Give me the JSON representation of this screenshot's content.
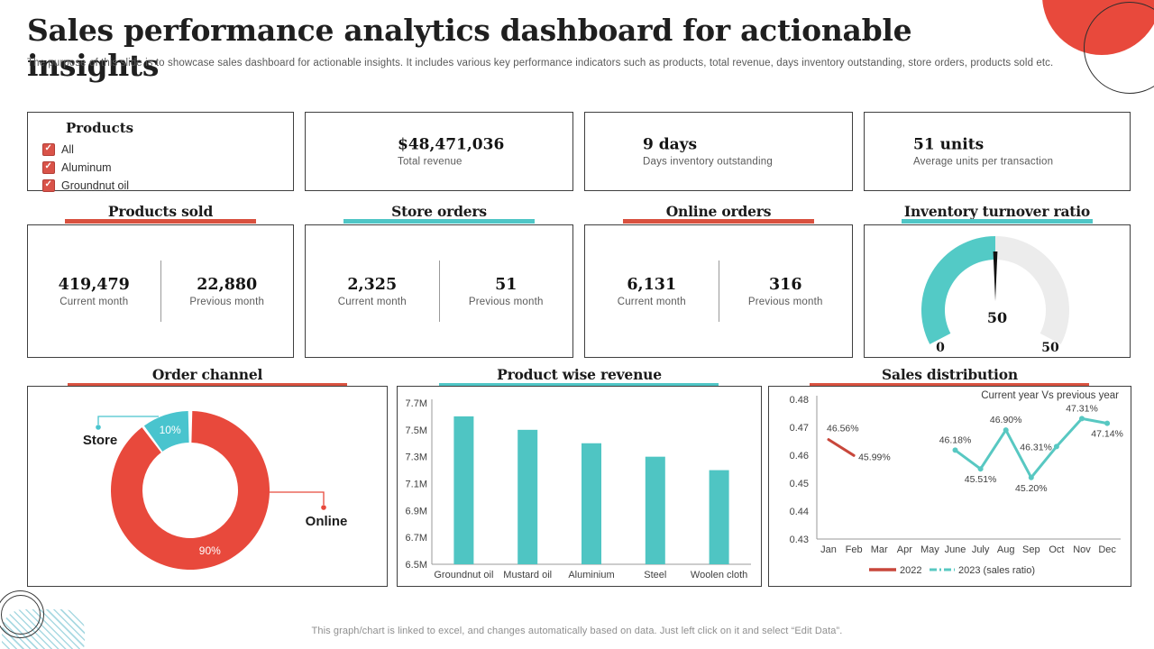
{
  "title": "Sales performance analytics dashboard for actionable insights",
  "subtitle": "The purpose of this slide is to showcase sales dashboard for actionable insights. It includes various key performance indicators such as products, total revenue, days inventory outstanding, store orders, products sold etc.",
  "footer": "This graph/chart is linked to excel, and changes automatically based on data. Just left click on it and select “Edit Data”.",
  "colors": {
    "accent_red": "#D9513F",
    "accent_teal": "#4FC6C6",
    "donut_red": "#E8493C",
    "donut_teal": "#49C4CE",
    "bar_teal": "#4FC5C3",
    "line_red": "#C8473B",
    "line_teal": "#58C8C2",
    "gauge_filled": "#53CAC6",
    "gauge_empty": "#ECECEC"
  },
  "filters": {
    "title": "Products",
    "options": [
      {
        "label": "All",
        "checked": true
      },
      {
        "label": "Aluminum",
        "checked": true
      },
      {
        "label": "Groundnut oil",
        "checked": true
      }
    ]
  },
  "kpis": [
    {
      "value": "$48,471,036",
      "label": "Total revenue"
    },
    {
      "value": "9 days",
      "label": "Days inventory outstanding"
    },
    {
      "value": "51 units",
      "label": "Average units per transaction"
    }
  ],
  "stat_cards": [
    {
      "title": "Products sold",
      "accent": "red",
      "current_value": "419,479",
      "current_label": "Current month",
      "previous_value": "22,880",
      "previous_label": "Previous month"
    },
    {
      "title": "Store orders",
      "accent": "teal",
      "current_value": "2,325",
      "current_label": "Current month",
      "previous_value": "51",
      "previous_label": "Previous month"
    },
    {
      "title": "Online orders",
      "accent": "red",
      "current_value": "6,131",
      "current_label": "Current month",
      "previous_value": "316",
      "previous_label": "Previous month"
    }
  ],
  "chart_data": [
    {
      "id": "inventory-gauge",
      "type": "gauge",
      "title": "Inventory turnover ratio",
      "value": 50,
      "value_label": "50",
      "min": 0,
      "max": 50,
      "min_label": "0",
      "max_label": "50",
      "colors": {
        "filled": "#53CAC6",
        "empty": "#ECECEC",
        "needle": "#111111"
      }
    },
    {
      "id": "order-channel",
      "type": "pie",
      "donut": true,
      "title": "Order channel",
      "slices": [
        {
          "label": "Online",
          "value": 90,
          "data_label": "90%",
          "color": "#E8493C"
        },
        {
          "label": "Store",
          "value": 10,
          "data_label": "10%",
          "color": "#49C4CE"
        }
      ]
    },
    {
      "id": "product-revenue",
      "type": "bar",
      "title": "Product wise revenue",
      "categories": [
        "Groundnut oil",
        "Mustard oil",
        "Aluminium",
        "Steel",
        "Woolen cloth"
      ],
      "values": [
        7.6,
        7.5,
        7.4,
        7.3,
        7.2
      ],
      "value_unit": "M",
      "ylim": [
        6.5,
        7.7
      ],
      "ytick_step": 0.2,
      "ytick_labels": [
        "6.5M",
        "6.7M",
        "6.9M",
        "7.1M",
        "7.3M",
        "7.5M",
        "7.7M"
      ],
      "bar_color": "#4FC5C3"
    },
    {
      "id": "sales-distribution",
      "type": "line",
      "title": "Sales distribution",
      "annotation": "Current year Vs previous year",
      "x_categories": [
        "Jan",
        "Feb",
        "Mar",
        "Apr",
        "May",
        "June",
        "July",
        "Aug",
        "Sep",
        "Oct",
        "Nov",
        "Dec"
      ],
      "ylim": [
        0.43,
        0.48
      ],
      "ytick_step": 0.01,
      "ytick_labels": [
        "0.43",
        "0.44",
        "0.45",
        "0.46",
        "0.47",
        "0.48"
      ],
      "legend": [
        {
          "name": "2022",
          "color": "#C8473B",
          "style": "solid"
        },
        {
          "name": "2023 (sales ratio)",
          "color": "#58C8C2",
          "style": "dash-dot"
        }
      ],
      "series": [
        {
          "name": "2022",
          "color": "#C8473B",
          "markers": false,
          "points": [
            {
              "x": "Jan",
              "y": 0.4656,
              "label": "46.56%",
              "label_pos": "above-left"
            },
            {
              "x": "Feb",
              "y": 0.4599,
              "label": "45.99%",
              "label_pos": "right"
            }
          ]
        },
        {
          "name": "2023 (sales ratio)",
          "color": "#58C8C2",
          "markers": true,
          "points": [
            {
              "x": "June",
              "y": 0.4618,
              "label": "46.18%",
              "label_pos": "above"
            },
            {
              "x": "July",
              "y": 0.4551,
              "label": "45.51%",
              "label_pos": "below"
            },
            {
              "x": "Aug",
              "y": 0.469,
              "label": "46.90%",
              "label_pos": "above"
            },
            {
              "x": "Sep",
              "y": 0.452,
              "label": "45.20%",
              "label_pos": "below"
            },
            {
              "x": "Oct",
              "y": 0.4631,
              "label": "46.31%",
              "label_pos": "left"
            },
            {
              "x": "Nov",
              "y": 0.4731,
              "label": "47.31%",
              "label_pos": "above"
            },
            {
              "x": "Dec",
              "y": 0.4714,
              "label": "47.14%",
              "label_pos": "below"
            }
          ]
        }
      ]
    }
  ]
}
